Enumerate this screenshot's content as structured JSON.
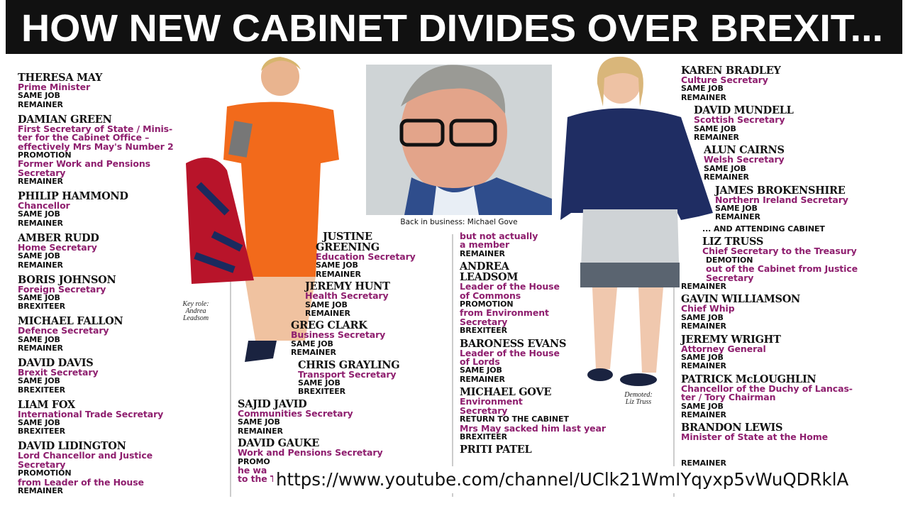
{
  "header": {
    "title": "HOW NEW CABINET DIVIDES OVER BREXIT..."
  },
  "captions": {
    "leadsom": [
      "Key role:",
      "Andrea",
      "Leadsom"
    ],
    "gove": "Back in business: Michael Gove",
    "truss": [
      "Demoted:",
      "Liz Truss"
    ]
  },
  "columns": [
    [
      {
        "name": "THERESA MAY",
        "lines": [
          "Prime Minister",
          "SAME JOB",
          "REMAINER"
        ]
      },
      {
        "name": "DAMIAN GREEN",
        "lines": [
          "First Secretary of State / Minis-",
          "ter for the Cabinet Office –",
          "effectively Mrs May's Number 2",
          "PROMOTION",
          "Former Work and Pensions",
          "Secretary",
          "REMAINER"
        ]
      },
      {
        "name": "PHILIP HAMMOND",
        "lines": [
          "Chancellor",
          "SAME JOB",
          "REMAINER"
        ]
      },
      {
        "name": "AMBER RUDD",
        "lines": [
          "Home Secretary",
          "SAME JOB",
          "REMAINER"
        ]
      },
      {
        "name": "BORIS JOHNSON",
        "lines": [
          "Foreign Secretary",
          "SAME JOB",
          "BREXITEER"
        ]
      },
      {
        "name": "MICHAEL FALLON",
        "lines": [
          "Defence Secretary",
          "SAME JOB",
          "REMAINER"
        ]
      },
      {
        "name": "DAVID DAVIS",
        "lines": [
          "Brexit Secretary",
          "SAME JOB",
          "BREXITEER"
        ]
      },
      {
        "name": "LIAM FOX",
        "lines": [
          "International Trade Secretary",
          "SAME JOB",
          "BREXITEER"
        ]
      },
      {
        "name": "DAVID LIDINGTON",
        "lines": [
          "Lord Chancellor and Justice",
          "Secretary",
          "PROMOTION",
          "from Leader of the House",
          "REMAINER"
        ]
      }
    ],
    [
      {
        "name": "JUSTINE",
        "lines": []
      },
      {
        "name": "GREENING",
        "lines": [
          "Education Secretary",
          "SAME JOB",
          "REMAINER"
        ]
      },
      {
        "name": "JEREMY HUNT",
        "lines": [
          "Health Secretary",
          "SAME JOB",
          "REMAINER"
        ]
      },
      {
        "name": "GREG CLARK",
        "lines": [
          "Business Secretary",
          "SAME JOB",
          "REMAINER"
        ]
      },
      {
        "name": "CHRIS GRAYLING",
        "lines": [
          "Transport Secretary",
          "SAME JOB",
          "BREXITEER"
        ]
      },
      {
        "name": "SAJID JAVID",
        "lines": [
          "Communities Secretary",
          "SAME JOB",
          "REMAINER"
        ]
      },
      {
        "name": "DAVID GAUKE",
        "lines": [
          "Work and Pensions Secretary",
          "PROMO",
          "he wa",
          "to the Treasury; attending Cabinet"
        ]
      }
    ],
    [
      {
        "name": "",
        "lines": [
          "but not actually",
          "a member",
          "REMAINER"
        ]
      },
      {
        "name": "ANDREA",
        "lines": []
      },
      {
        "name": "LEADSOM",
        "lines": [
          "Leader of the House",
          "of Commons",
          "PROMOTION",
          "from Environment",
          "Secretary",
          "BREXITEER"
        ]
      },
      {
        "name": "BARONESS EVANS",
        "lines": [
          "Leader of the House",
          "of Lords",
          "SAME JOB",
          "REMAINER"
        ]
      },
      {
        "name": "MICHAEL GOVE",
        "lines": [
          "Environment",
          "Secretary",
          "RETURN TO THE CABINET",
          "Mrs May sacked him last year",
          "BREXITEER"
        ]
      },
      {
        "name": "PRITI PATEL",
        "lines": []
      }
    ],
    [
      {
        "name": "KAREN BRADLEY",
        "lines": [
          "Culture Secretary",
          "SAME JOB",
          "REMAINER"
        ]
      },
      {
        "name": "DAVID MUNDELL",
        "lines": [
          "Scottish Secretary",
          "SAME JOB",
          "REMAINER"
        ]
      },
      {
        "name": "ALUN CAIRNS",
        "lines": [
          "Welsh Secretary",
          "SAME JOB",
          "REMAINER"
        ]
      },
      {
        "name": "JAMES BROKENSHIRE",
        "lines": [
          "Northern Ireland Secretary",
          "SAME JOB",
          "REMAINER"
        ]
      },
      {
        "name": "",
        "lines": [
          "... AND ATTENDING CABINET"
        ]
      },
      {
        "name": "LIZ TRUSS",
        "lines": [
          "Chief Secretary to the Treasury",
          "DEMOTION",
          "out of the Cabinet from Justice",
          "Secretary",
          "REMAINER"
        ]
      },
      {
        "name": "GAVIN WILLIAMSON",
        "lines": [
          "Chief Whip",
          "SAME JOB",
          "REMAINER"
        ]
      },
      {
        "name": "JEREMY WRIGHT",
        "lines": [
          "Attorney General",
          "SAME JOB",
          "REMAINER"
        ]
      },
      {
        "name": "PATRICK McLOUGHLIN",
        "lines": [
          "Chancellor of the Duchy of Lancas-",
          "ter / Tory Chairman",
          "SAME JOB",
          "REMAINER"
        ]
      },
      {
        "name": "BRANDON LEWIS",
        "lines": [
          "Minister of State at the Home",
          "",
          "",
          "REMAINER"
        ]
      }
    ]
  ],
  "overlay": {
    "url": "https://www.youtube.com/channel/UClk21WmIYqyxp5vWuQDRklA"
  }
}
